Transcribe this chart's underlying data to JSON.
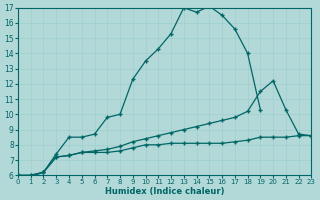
{
  "xlabel": "Humidex (Indice chaleur)",
  "background_color": "#b2d8d8",
  "line_color": "#006666",
  "xlim": [
    0,
    23
  ],
  "ylim": [
    6,
    17
  ],
  "xticks": [
    0,
    1,
    2,
    3,
    4,
    5,
    6,
    7,
    8,
    9,
    10,
    11,
    12,
    13,
    14,
    15,
    16,
    17,
    18,
    19,
    20,
    21,
    22,
    23
  ],
  "yticks": [
    6,
    7,
    8,
    9,
    10,
    11,
    12,
    13,
    14,
    15,
    16,
    17
  ],
  "line1_x": [
    0,
    1,
    2,
    3,
    4,
    5,
    6,
    7,
    8,
    9,
    10,
    11,
    12,
    13,
    14,
    15,
    16,
    17,
    18,
    19
  ],
  "line1_y": [
    6.0,
    5.9,
    6.2,
    7.4,
    8.5,
    8.5,
    8.7,
    9.8,
    10.0,
    12.3,
    13.5,
    14.3,
    15.3,
    17.0,
    16.7,
    17.1,
    16.5,
    15.6,
    14.0,
    10.3
  ],
  "line2_x": [
    0,
    1,
    2,
    3,
    4,
    5,
    6,
    7,
    8,
    9,
    10,
    11,
    12,
    13,
    14,
    15,
    16,
    17,
    18,
    19,
    20,
    21,
    22,
    23
  ],
  "line2_y": [
    6.0,
    6.0,
    6.2,
    7.2,
    7.3,
    7.5,
    7.5,
    7.5,
    7.6,
    7.8,
    8.0,
    8.0,
    8.1,
    8.1,
    8.1,
    8.1,
    8.1,
    8.2,
    8.3,
    8.5,
    8.5,
    8.5,
    8.6,
    8.6
  ],
  "line3_x": [
    0,
    1,
    2,
    3,
    4,
    5,
    6,
    7,
    8,
    9,
    10,
    11,
    12,
    13,
    14,
    15,
    16,
    17,
    18,
    19,
    20,
    21,
    22,
    23
  ],
  "line3_y": [
    6.0,
    6.0,
    6.2,
    7.2,
    7.3,
    7.5,
    7.6,
    7.7,
    7.9,
    8.2,
    8.4,
    8.6,
    8.8,
    9.0,
    9.2,
    9.4,
    9.6,
    9.8,
    10.2,
    11.5,
    12.2,
    10.3,
    8.7,
    8.6
  ]
}
